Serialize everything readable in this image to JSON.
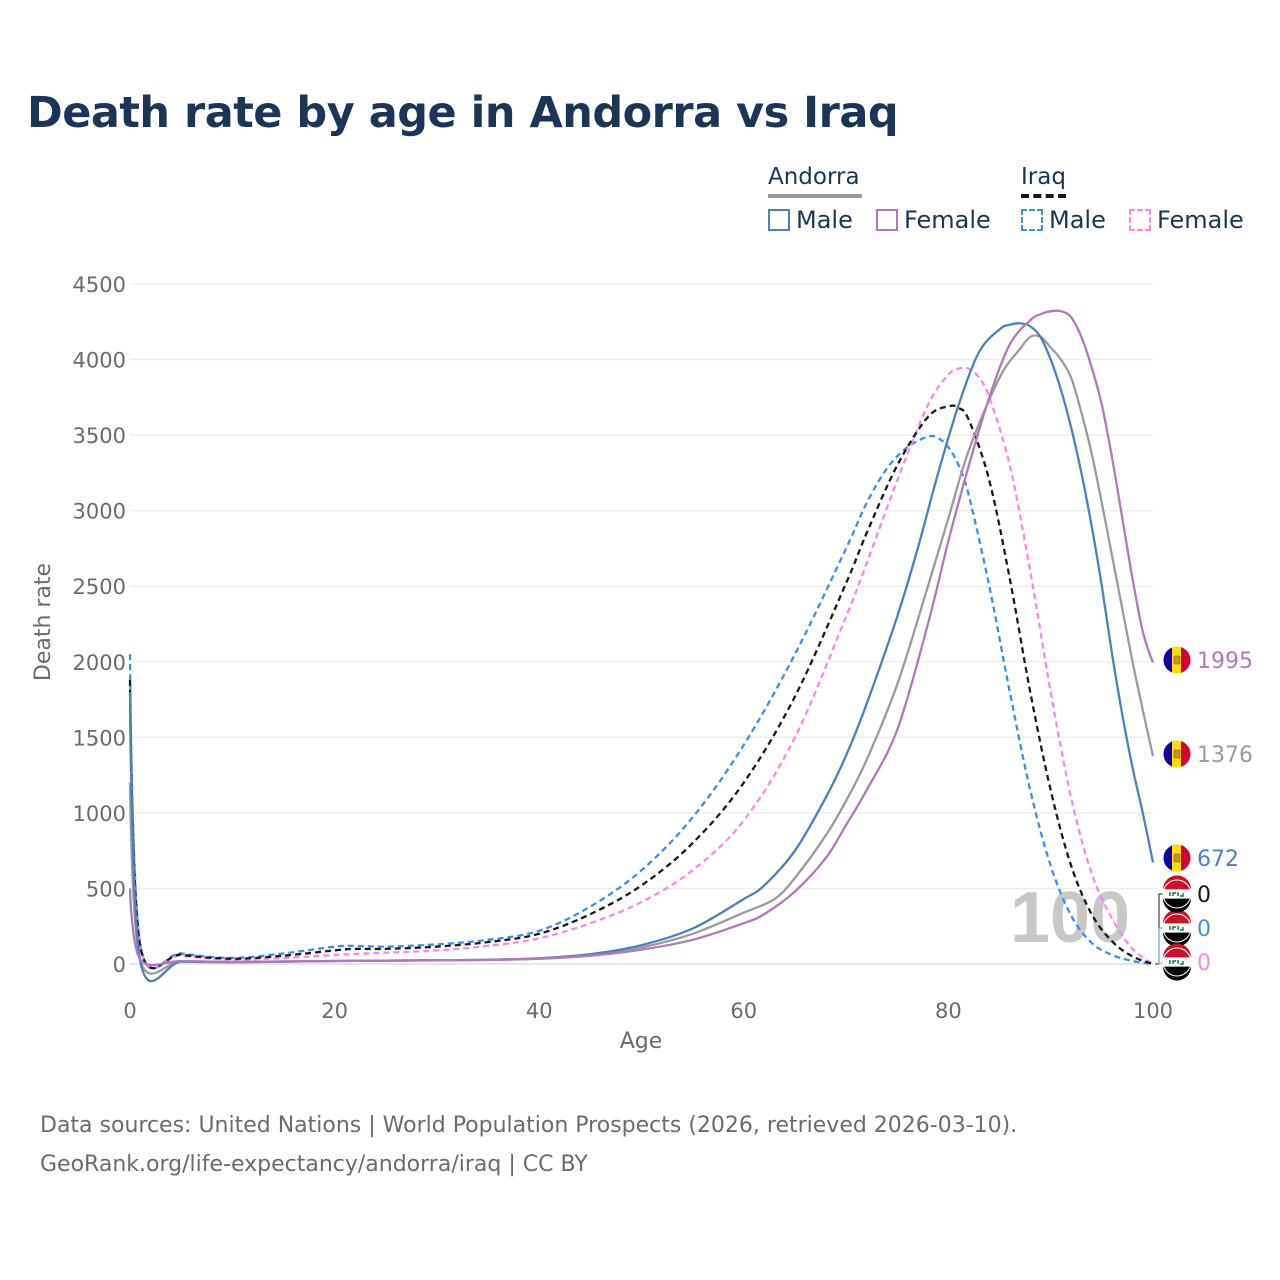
{
  "title": "Death rate by age in Andorra vs Iraq",
  "legend": {
    "groups": [
      {
        "name": "Andorra",
        "items": [
          {
            "label": "Male",
            "color": "#4e7fc0",
            "dash": false
          },
          {
            "label": "Female",
            "color": "#b07ab8",
            "dash": false
          }
        ]
      },
      {
        "name": "Iraq",
        "items": [
          {
            "label": "Male",
            "color": "#3f8ee8",
            "dash": true
          },
          {
            "label": "Female",
            "color": "#f58ae8",
            "dash": true
          }
        ]
      }
    ]
  },
  "slider_label": "100",
  "source_lines": [
    "Data sources: United Nations | World Population Prospects (2026, retrieved 2026-03-10).",
    "GeoRank.org/life-expectancy/andorra/iraq | CC BY"
  ],
  "chart_data": {
    "type": "line",
    "xlabel": "Age",
    "ylabel": "Death rate",
    "xlim": [
      0,
      100
    ],
    "ylim": [
      0,
      4500
    ],
    "xticks": [
      0,
      20,
      40,
      60,
      80,
      100
    ],
    "yticks": [
      0,
      500,
      1000,
      1500,
      2000,
      2500,
      3000,
      3500,
      4000,
      4500
    ],
    "grid": true,
    "series": [
      {
        "name": "Andorra Male",
        "country": "Andorra",
        "color": "#4e7fc0",
        "dash": false,
        "x": [
          0,
          1,
          5,
          10,
          15,
          20,
          25,
          30,
          35,
          40,
          45,
          50,
          55,
          60,
          62,
          65,
          68,
          70,
          72,
          75,
          77,
          79,
          81,
          83,
          85,
          86,
          87,
          88,
          89,
          90,
          91,
          92,
          93,
          94,
          95,
          96,
          97,
          98,
          99,
          100
        ],
        "y": [
          1800,
          20,
          15,
          12,
          15,
          20,
          22,
          25,
          28,
          38,
          65,
          125,
          235,
          430,
          520,
          750,
          1100,
          1380,
          1720,
          2300,
          2750,
          3250,
          3700,
          4050,
          4200,
          4230,
          4240,
          4220,
          4150,
          4000,
          3800,
          3550,
          3250,
          2900,
          2500,
          2050,
          1650,
          1300,
          1000,
          672
        ],
        "end_label": "672",
        "end_flag": "andorra"
      },
      {
        "name": "Andorra Female",
        "country": "Andorra",
        "color": "#b07ab8",
        "dash": false,
        "x": [
          0,
          1,
          5,
          10,
          15,
          20,
          25,
          30,
          35,
          40,
          45,
          50,
          55,
          60,
          62,
          65,
          68,
          70,
          72,
          75,
          78,
          80,
          82,
          84,
          86,
          88,
          89,
          90,
          91,
          92,
          93,
          94,
          95,
          96,
          97,
          98,
          99,
          100
        ],
        "y": [
          500,
          30,
          20,
          15,
          17,
          20,
          22,
          24,
          27,
          35,
          55,
          95,
          160,
          270,
          330,
          480,
          700,
          920,
          1150,
          1550,
          2250,
          2800,
          3300,
          3750,
          4100,
          4260,
          4300,
          4320,
          4320,
          4280,
          4150,
          3950,
          3700,
          3350,
          2950,
          2550,
          2200,
          1995
        ],
        "end_label": "1995",
        "end_flag": "andorra"
      },
      {
        "name": "Andorra Both",
        "country": "Andorra",
        "color": "#9b9b9b",
        "dash": false,
        "x": [
          0,
          1,
          5,
          10,
          15,
          20,
          25,
          30,
          35,
          40,
          45,
          50,
          55,
          60,
          63,
          65,
          68,
          70,
          72,
          75,
          78,
          80,
          82,
          85,
          87,
          88,
          89,
          90,
          91,
          92,
          93,
          94,
          95,
          96,
          97,
          98,
          99,
          100
        ],
        "y": [
          1200,
          25,
          18,
          14,
          16,
          20,
          22,
          25,
          28,
          36,
          60,
          110,
          200,
          340,
          430,
          570,
          850,
          1080,
          1350,
          1850,
          2500,
          2950,
          3400,
          3880,
          4070,
          4150,
          4150,
          4080,
          4000,
          3880,
          3650,
          3380,
          3050,
          2700,
          2350,
          2000,
          1680,
          1376
        ],
        "end_label": "1376",
        "end_flag": "andorra"
      },
      {
        "name": "Iraq Male",
        "country": "Iraq",
        "color": "#3f8ee8",
        "dash": true,
        "x": [
          0,
          1,
          5,
          10,
          15,
          20,
          22,
          25,
          30,
          35,
          40,
          45,
          50,
          55,
          60,
          65,
          70,
          72,
          74,
          76,
          78,
          79,
          80,
          81,
          82,
          84,
          86,
          88,
          90,
          92,
          94,
          96,
          98,
          100
        ],
        "y": [
          2050,
          130,
          70,
          40,
          70,
          115,
          120,
          115,
          130,
          160,
          220,
          380,
          620,
          970,
          1450,
          2050,
          2750,
          3050,
          3280,
          3420,
          3490,
          3480,
          3420,
          3300,
          3100,
          2500,
          1800,
          1150,
          650,
          320,
          140,
          60,
          20,
          0
        ],
        "end_label": "0",
        "end_flag": "iraq"
      },
      {
        "name": "Iraq Female",
        "country": "Iraq",
        "color": "#f58ae8",
        "dash": true,
        "x": [
          0,
          1,
          5,
          10,
          15,
          20,
          25,
          30,
          35,
          40,
          45,
          50,
          55,
          60,
          65,
          70,
          72,
          75,
          78,
          80,
          81,
          82,
          83,
          84,
          86,
          88,
          90,
          92,
          94,
          96,
          98,
          100
        ],
        "y": [
          1700,
          110,
          55,
          30,
          40,
          60,
          75,
          90,
          120,
          170,
          270,
          410,
          620,
          950,
          1500,
          2300,
          2650,
          3200,
          3700,
          3900,
          3940,
          3940,
          3880,
          3750,
          3300,
          2600,
          1800,
          1100,
          600,
          300,
          100,
          0
        ],
        "end_label": "0",
        "end_flag": "iraq"
      },
      {
        "name": "Iraq Both",
        "country": "Iraq",
        "color": "#1a1a1a",
        "dash": true,
        "x": [
          0,
          1,
          5,
          10,
          15,
          20,
          22,
          25,
          30,
          35,
          40,
          45,
          50,
          55,
          60,
          65,
          70,
          72,
          75,
          78,
          80,
          81,
          82,
          84,
          86,
          88,
          90,
          92,
          94,
          96,
          98,
          100
        ],
        "y": [
          1880,
          120,
          62,
          35,
          55,
          90,
          100,
          100,
          115,
          145,
          200,
          330,
          520,
          800,
          1200,
          1770,
          2520,
          2850,
          3300,
          3620,
          3690,
          3680,
          3600,
          3200,
          2550,
          1800,
          1150,
          650,
          330,
          150,
          50,
          0
        ],
        "end_label": "0",
        "end_flag": "iraq"
      }
    ]
  }
}
